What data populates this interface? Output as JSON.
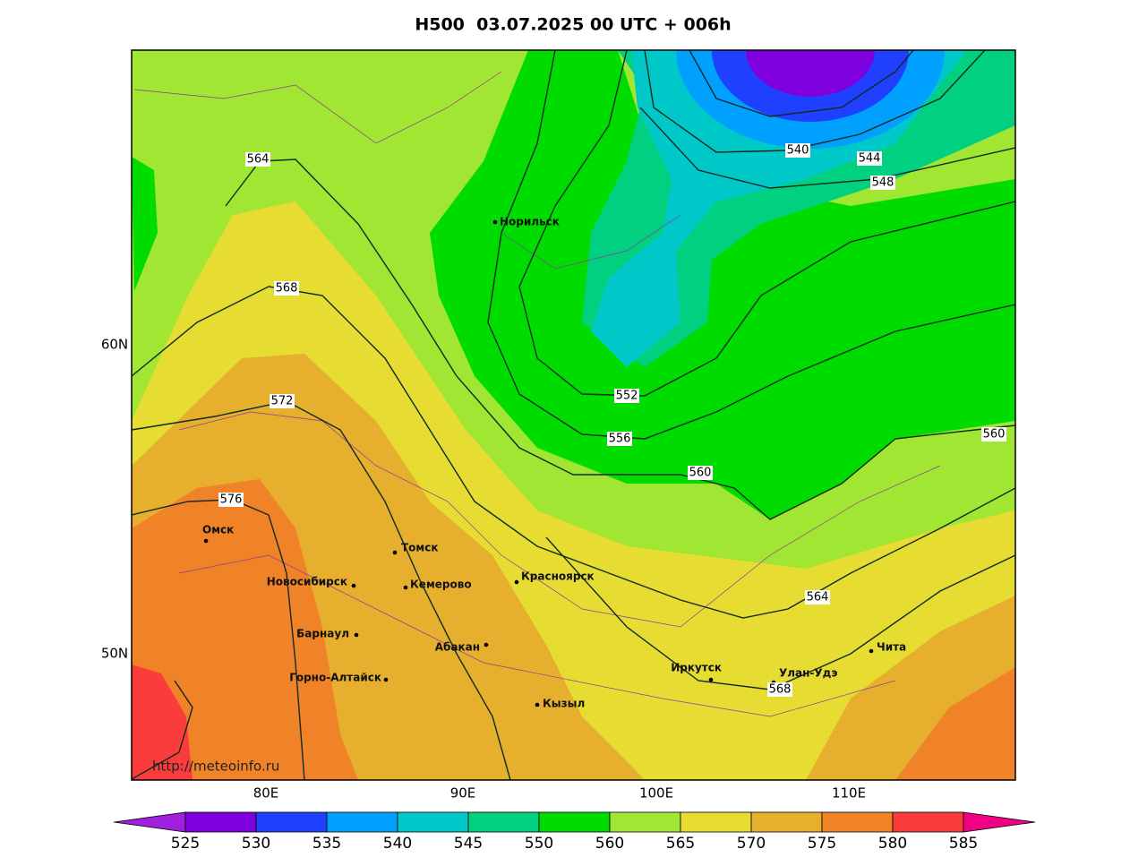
{
  "header": {
    "title": "H500  03.07.2025 00 UTC + 006h"
  },
  "map": {
    "lat_labels": [
      "60N",
      "50N"
    ],
    "lon_labels": [
      "80E",
      "90E",
      "100E",
      "110E"
    ],
    "cities": [
      "Норильск",
      "Омск",
      "Томск",
      "Новосибирск",
      "Кемерово",
      "Красноярск",
      "Барнаул",
      "Абакан",
      "Горно-Алтайск",
      "Кызыл",
      "Иркутск",
      "Улан-Удэ",
      "Чита"
    ],
    "contour_labels": [
      564,
      568,
      572,
      576,
      540,
      544,
      548,
      552,
      556,
      560,
      560,
      564,
      568
    ],
    "watermark": "http://meteoinfo.ru"
  },
  "colorbar": {
    "labels": [
      525,
      530,
      535,
      540,
      545,
      550,
      560,
      565,
      570,
      575,
      580,
      585
    ],
    "colors": [
      "#a020e0",
      "#7f00df",
      "#2040ff",
      "#00a0ff",
      "#00c8c8",
      "#00d080",
      "#00dc00",
      "#a0e632",
      "#e6dc32",
      "#e6af2d",
      "#f08228",
      "#fa3c3c",
      "#f00082"
    ]
  }
}
